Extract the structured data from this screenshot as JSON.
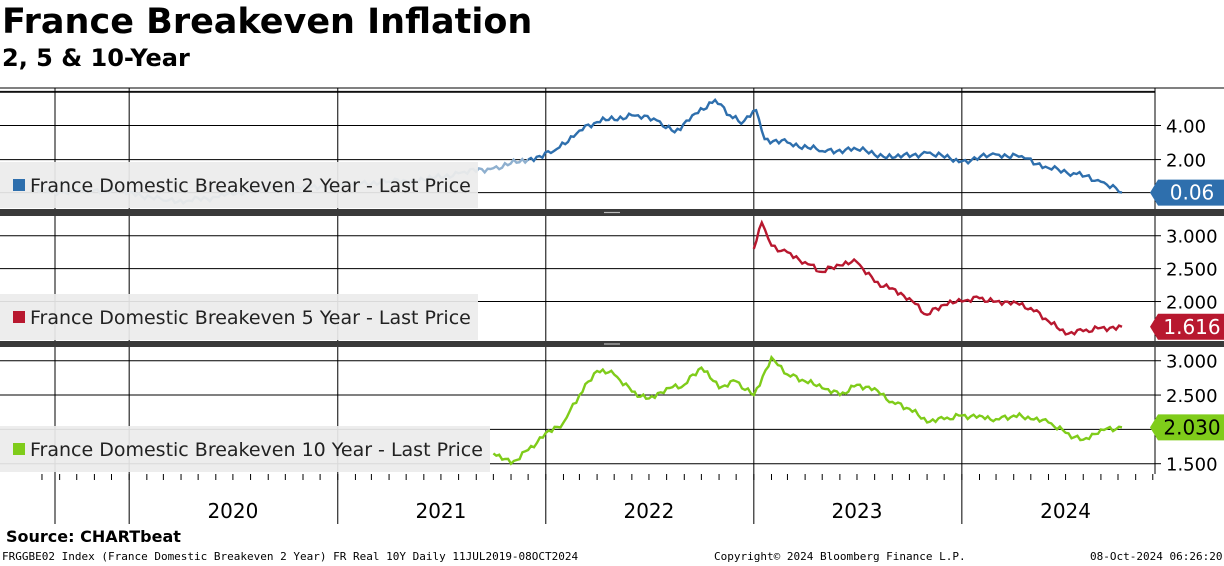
{
  "header": {
    "title": "France Breakeven Inflation",
    "subtitle": "2, 5 & 10-Year"
  },
  "footer": {
    "source": "Source: CHARTbeat",
    "index_info": "FRGGBE02 Index (France Domestic Breakeven 2 Year) FR Real 10Y Daily 11JUL2019-08OCT2024",
    "copyright": "Copyright© 2024 Bloomberg Finance L.P.",
    "timestamp": "08-Oct-2024 06:26:20"
  },
  "colors": {
    "two_year": "#2e6fad",
    "two_year_early": "#8fb0cf",
    "five_year": "#b8182f",
    "ten_year": "#7fcc1a",
    "grid": "#000000",
    "legend_bg": "#ececec"
  },
  "chart_data": [
    {
      "type": "line",
      "panel": "top",
      "series": [
        {
          "name": "France Domestic Breakeven 2 Year - Last Price",
          "last_value": "0.06",
          "x": [
            "2019-07-11",
            "2019-09-01",
            "2019-11-01",
            "2020-01-01",
            "2020-03-01",
            "2020-04-15",
            "2020-06-01",
            "2020-08-01",
            "2020-10-01",
            "2020-12-01",
            "2021-02-01",
            "2021-04-01",
            "2021-06-01",
            "2021-08-01",
            "2021-10-01",
            "2021-12-01",
            "2022-01-15",
            "2022-03-01",
            "2022-04-01",
            "2022-06-01",
            "2022-07-15",
            "2022-08-15",
            "2022-09-15",
            "2022-10-25",
            "2022-11-20",
            "2022-12-10",
            "2023-01-05",
            "2023-01-20",
            "2023-03-01",
            "2023-05-01",
            "2023-07-01",
            "2023-09-01",
            "2023-11-01",
            "2024-01-01",
            "2024-03-01",
            "2024-04-15",
            "2024-06-01",
            "2024-07-15",
            "2024-09-01",
            "2024-10-08"
          ],
          "values": [
            0.2,
            0.1,
            0.2,
            0.1,
            -0.4,
            -0.4,
            -0.2,
            0.2,
            0.3,
            0.4,
            0.6,
            0.7,
            0.8,
            1.2,
            1.5,
            2.0,
            2.5,
            3.7,
            4.2,
            4.6,
            4.3,
            3.6,
            4.6,
            5.5,
            4.6,
            4.1,
            4.9,
            3.2,
            3.0,
            2.5,
            2.6,
            2.1,
            2.4,
            1.9,
            2.3,
            2.2,
            1.5,
            1.2,
            0.7,
            0.06
          ]
        }
      ],
      "ytick_labels": [
        "2.00",
        "4.00"
      ],
      "ylim": [
        -0.9,
        6.2
      ]
    },
    {
      "type": "line",
      "panel": "middle",
      "series": [
        {
          "name": "France Domestic Breakeven 5 Year - Last Price",
          "last_value": "1.616",
          "x": [
            "2023-01-01",
            "2023-01-15",
            "2023-02-01",
            "2023-03-01",
            "2023-04-01",
            "2023-05-01",
            "2023-06-01",
            "2023-07-01",
            "2023-08-01",
            "2023-09-01",
            "2023-10-01",
            "2023-11-01",
            "2023-12-01",
            "2024-01-01",
            "2024-02-01",
            "2024-03-01",
            "2024-04-01",
            "2024-05-01",
            "2024-06-01",
            "2024-07-01",
            "2024-08-01",
            "2024-09-01",
            "2024-10-08"
          ],
          "values": [
            2.8,
            3.2,
            2.85,
            2.75,
            2.6,
            2.45,
            2.55,
            2.6,
            2.3,
            2.2,
            2.05,
            1.8,
            1.95,
            2.0,
            2.05,
            2.0,
            2.0,
            1.9,
            1.7,
            1.5,
            1.55,
            1.6,
            1.616
          ]
        }
      ],
      "ytick_labels": [
        "2.000",
        "2.500",
        "3.000"
      ],
      "ylim": [
        1.4,
        3.3
      ]
    },
    {
      "type": "line",
      "panel": "bottom",
      "series": [
        {
          "name": "France Domestic Breakeven 10 Year - Last Price",
          "last_value": "2.030",
          "x": [
            "2021-10-01",
            "2021-11-01",
            "2021-12-01",
            "2022-01-01",
            "2022-02-01",
            "2022-03-01",
            "2022-04-01",
            "2022-05-01",
            "2022-06-01",
            "2022-07-01",
            "2022-08-01",
            "2022-09-01",
            "2022-10-01",
            "2022-11-01",
            "2022-12-01",
            "2023-01-01",
            "2023-02-01",
            "2023-03-01",
            "2023-04-01",
            "2023-05-01",
            "2023-06-01",
            "2023-07-01",
            "2023-08-01",
            "2023-09-01",
            "2023-10-01",
            "2023-11-01",
            "2023-12-01",
            "2024-01-01",
            "2024-02-01",
            "2024-03-01",
            "2024-04-01",
            "2024-05-01",
            "2024-06-01",
            "2024-07-01",
            "2024-08-01",
            "2024-09-01",
            "2024-10-08"
          ],
          "values": [
            1.65,
            1.5,
            1.7,
            1.95,
            2.1,
            2.5,
            2.85,
            2.8,
            2.55,
            2.45,
            2.6,
            2.65,
            2.9,
            2.6,
            2.7,
            2.5,
            3.05,
            2.8,
            2.7,
            2.6,
            2.5,
            2.65,
            2.6,
            2.4,
            2.3,
            2.1,
            2.15,
            2.2,
            2.2,
            2.15,
            2.2,
            2.15,
            2.1,
            1.95,
            1.85,
            2.0,
            2.03
          ]
        }
      ],
      "ytick_labels": [
        "1.500",
        "2.000",
        "2.500",
        "3.000"
      ],
      "ylim": [
        1.35,
        3.2
      ]
    }
  ],
  "x_axis": {
    "year_labels": [
      "2020",
      "2021",
      "2022",
      "2023",
      "2024"
    ]
  }
}
